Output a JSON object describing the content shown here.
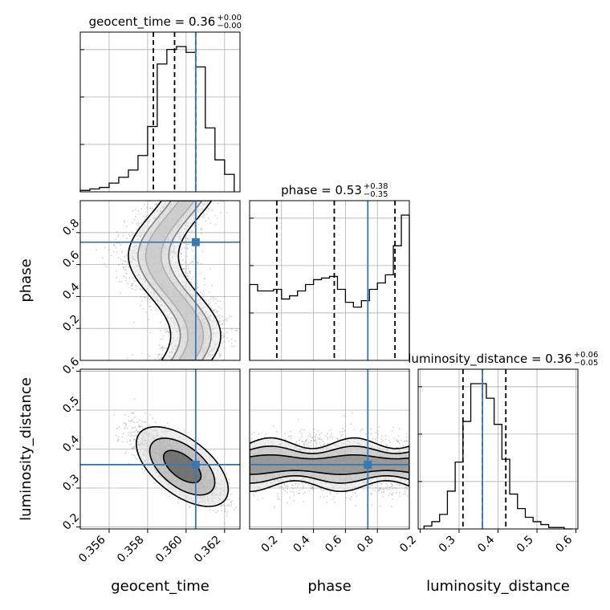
{
  "colors": {
    "truth": "#3b78b0",
    "hist": "#000000",
    "grid": "#b0b0b0",
    "scatter": "#9a9a9a"
  },
  "chart_data": {
    "type": "corner",
    "parameters": [
      "geocent_time",
      "phase",
      "luminosity_distance"
    ],
    "titles": [
      {
        "param": "geocent_time",
        "label": "geocent_time = 0.36",
        "plus": "+0.00",
        "minus": "−0.00"
      },
      {
        "param": "phase",
        "label": "phase = 0.53",
        "plus": "+0.38",
        "minus": "−0.35"
      },
      {
        "param": "luminosity_distance",
        "label": "luminosity_distance = 0.36",
        "plus": "+0.06",
        "minus": "−0.05"
      }
    ],
    "axis_labels": {
      "x": [
        "geocent_time",
        "phase",
        "luminosity_distance"
      ],
      "y": [
        "phase",
        "luminosity_distance"
      ]
    },
    "ranges": {
      "geocent_time": [
        0.3545,
        0.3628
      ],
      "phase": [
        0.0,
        1.0
      ],
      "luminosity_distance": [
        0.195,
        0.605
      ]
    },
    "ticks": {
      "geocent_time": [
        "0.356",
        "0.358",
        "0.360",
        "0.362"
      ],
      "phase": [
        "0.2",
        "0.4",
        "0.6",
        "0.8"
      ],
      "luminosity_distance_x": [
        "0.2",
        "0.3",
        "0.4",
        "0.5",
        "0.6"
      ],
      "luminosity_distance_y": [
        "0.2",
        "0.3",
        "0.4",
        "0.5",
        "0.6"
      ]
    },
    "truths": {
      "geocent_time": 0.3605,
      "phase": 0.74,
      "luminosity_distance": 0.36
    },
    "quantiles": {
      "geocent_time": [
        0.3583,
        0.3594,
        0.3605
      ],
      "phase": [
        0.17,
        0.53,
        0.91
      ],
      "luminosity_distance": [
        0.31,
        0.36,
        0.42
      ]
    },
    "histograms": {
      "geocent_time": {
        "bin_edges": [
          0.3545,
          0.355,
          0.3555,
          0.356,
          0.3565,
          0.357,
          0.3575,
          0.358,
          0.3585,
          0.359,
          0.3595,
          0.36,
          0.3605,
          0.361,
          0.3615,
          0.362,
          0.3625
        ],
        "counts": [
          1,
          2,
          3,
          6,
          10,
          15,
          25,
          45,
          88,
          98,
          100,
          96,
          86,
          44,
          22,
          12
        ]
      },
      "phase": {
        "bin_edges": [
          0.0,
          0.05,
          0.1,
          0.15,
          0.2,
          0.25,
          0.3,
          0.35,
          0.4,
          0.45,
          0.5,
          0.55,
          0.6,
          0.65,
          0.7,
          0.75,
          0.8,
          0.85,
          0.9,
          0.95,
          1.0
        ],
        "counts": [
          47,
          43,
          43,
          44,
          38,
          40,
          43,
          47,
          50,
          51,
          52,
          44,
          36,
          33,
          37,
          44,
          48,
          53,
          71,
          90
        ]
      },
      "luminosity_distance": {
        "bin_edges": [
          0.21,
          0.23,
          0.25,
          0.27,
          0.29,
          0.31,
          0.33,
          0.35,
          0.37,
          0.39,
          0.41,
          0.43,
          0.45,
          0.47,
          0.49,
          0.51,
          0.53,
          0.55,
          0.57,
          0.59
        ],
        "counts": [
          2,
          5,
          10,
          26,
          46,
          74,
          100,
          100,
          90,
          72,
          48,
          24,
          14,
          8,
          5,
          3,
          1,
          1,
          0
        ]
      }
    },
    "grid": true
  }
}
